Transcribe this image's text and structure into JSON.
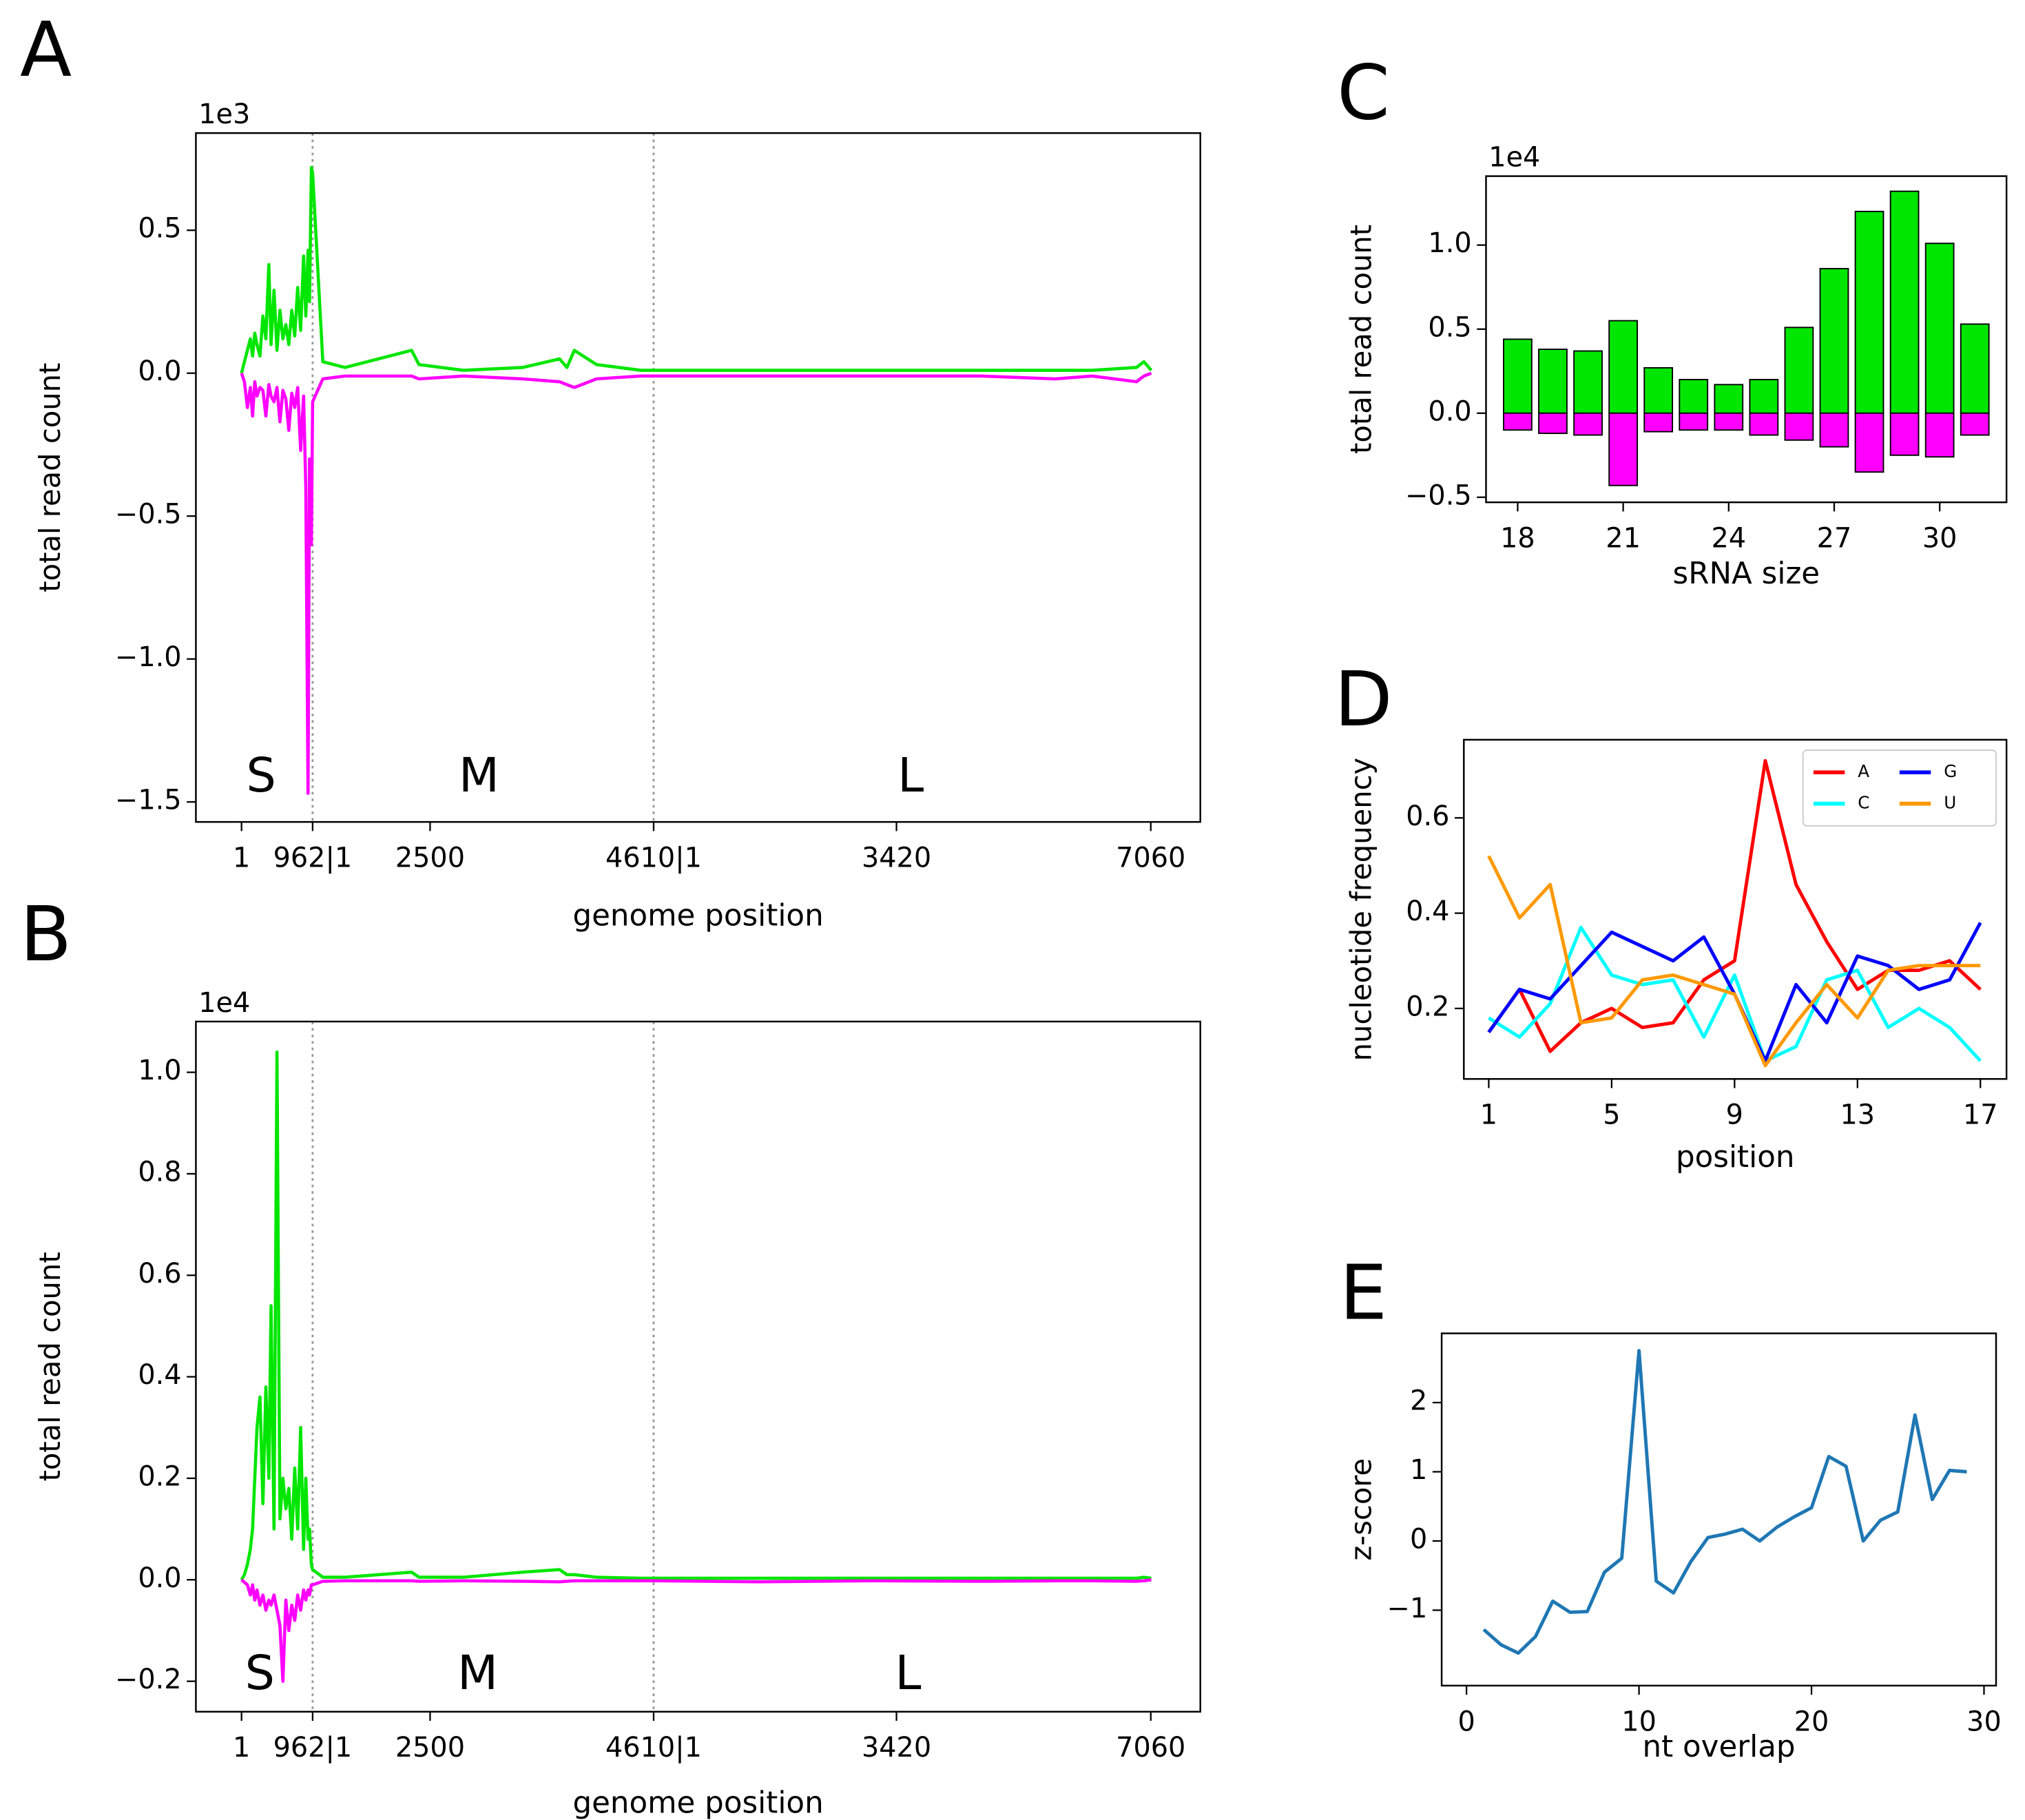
{
  "chart_data": [
    {
      "type": "line",
      "panel_label": "A",
      "offset_text": "1e3",
      "ylabel": "total read count",
      "xlabel": "genome position",
      "annotations": [
        "S",
        "M",
        "L"
      ],
      "vlines": [
        962,
        5572
      ],
      "xlim": [
        -616,
        12963
      ],
      "ylim": [
        -1.57,
        0.84
      ],
      "xticks": [
        {
          "value": 1,
          "label": "1"
        },
        {
          "value": 962,
          "label": "962|1"
        },
        {
          "value": 2550,
          "label": "2500"
        },
        {
          "value": 5572,
          "label": "4610|1"
        },
        {
          "value": 8855,
          "label": "3420"
        },
        {
          "value": 12293,
          "label": "7060"
        }
      ],
      "yticks": [
        0.5,
        {
          "value": 0,
          "label": "0.0"
        },
        {
          "value": -0.5,
          "label": "−0.5"
        },
        {
          "value": -1,
          "label": "−1.0"
        },
        {
          "value": -1.5,
          "label": "−1.5"
        }
      ],
      "x": [
        1,
        40,
        80,
        120,
        150,
        180,
        210,
        250,
        290,
        330,
        370,
        400,
        440,
        480,
        520,
        560,
        600,
        640,
        680,
        720,
        760,
        800,
        840,
        870,
        900,
        920,
        945,
        962,
        1100,
        1400,
        2300,
        2400,
        3000,
        3800,
        4300,
        4400,
        4500,
        4800,
        5400,
        5600,
        7000,
        8500,
        10000,
        11000,
        11500,
        12100,
        12200,
        12300
      ],
      "series": [
        {
          "color": "#00e600",
          "values": [
            0,
            0.04,
            0.08,
            0.12,
            0.06,
            0.14,
            0.1,
            0.06,
            0.2,
            0.12,
            0.38,
            0.1,
            0.29,
            0.08,
            0.22,
            0.12,
            0.17,
            0.1,
            0.22,
            0.13,
            0.3,
            0.15,
            0.41,
            0.2,
            0.43,
            0.25,
            0.72,
            0.7,
            0.04,
            0.02,
            0.08,
            0.03,
            0.01,
            0.02,
            0.05,
            0.02,
            0.08,
            0.03,
            0.01,
            0.01,
            0.01,
            0.01,
            0.01,
            0.01,
            0.01,
            0.02,
            0.04,
            0.01
          ]
        },
        {
          "color": "#ff00ff",
          "values": [
            0,
            -0.03,
            -0.12,
            -0.05,
            -0.15,
            -0.03,
            -0.08,
            -0.05,
            -0.06,
            -0.15,
            -0.04,
            -0.08,
            -0.1,
            -0.05,
            -0.17,
            -0.06,
            -0.09,
            -0.2,
            -0.07,
            -0.12,
            -0.05,
            -0.27,
            -0.08,
            -0.4,
            -1.47,
            -0.3,
            -0.6,
            -0.1,
            -0.02,
            -0.01,
            -0.01,
            -0.02,
            -0.01,
            -0.02,
            -0.03,
            -0.04,
            -0.05,
            -0.02,
            -0.01,
            -0.01,
            -0.01,
            -0.01,
            -0.01,
            -0.02,
            -0.01,
            -0.03,
            -0.01,
            0
          ]
        }
      ]
    },
    {
      "type": "line",
      "panel_label": "B",
      "offset_text": "1e4",
      "ylabel": "total read count",
      "xlabel": "genome position",
      "annotations": [
        "S",
        "M",
        "L"
      ],
      "vlines": [
        962,
        5572
      ],
      "xlim": [
        -616,
        12963
      ],
      "ylim": [
        -0.26,
        1.1
      ],
      "xticks": [
        {
          "value": 1,
          "label": "1"
        },
        {
          "value": 962,
          "label": "962|1"
        },
        {
          "value": 2550,
          "label": "2500"
        },
        {
          "value": 5572,
          "label": "4610|1"
        },
        {
          "value": 8855,
          "label": "3420"
        },
        {
          "value": 12293,
          "label": "7060"
        }
      ],
      "yticks": [
        {
          "value": 1,
          "label": "1.0"
        },
        0.8,
        0.6,
        0.4,
        0.2,
        {
          "value": 0,
          "label": "0.0"
        },
        {
          "value": -0.2,
          "label": "−0.2"
        }
      ],
      "x": [
        1,
        40,
        80,
        120,
        150,
        180,
        210,
        250,
        290,
        330,
        370,
        400,
        440,
        480,
        520,
        560,
        600,
        640,
        680,
        720,
        760,
        800,
        840,
        870,
        900,
        920,
        945,
        962,
        1100,
        1400,
        2300,
        2400,
        3000,
        3800,
        4300,
        4400,
        4500,
        4800,
        5400,
        5600,
        7000,
        8500,
        10000,
        11000,
        11500,
        12100,
        12200,
        12300
      ],
      "series": [
        {
          "color": "#00e600",
          "values": [
            0,
            0.01,
            0.03,
            0.06,
            0.1,
            0.2,
            0.3,
            0.36,
            0.15,
            0.38,
            0.2,
            0.54,
            0.1,
            1.04,
            0.12,
            0.2,
            0.14,
            0.18,
            0.08,
            0.22,
            0.1,
            0.3,
            0.06,
            0.2,
            0.08,
            0.1,
            0.03,
            0.02,
            0.005,
            0.005,
            0.015,
            0.005,
            0.005,
            0.015,
            0.02,
            0.01,
            0.01,
            0.005,
            0.003,
            0.003,
            0.003,
            0.003,
            0.003,
            0.003,
            0.003,
            0.003,
            0.005,
            0.003
          ]
        },
        {
          "color": "#ff00ff",
          "values": [
            0,
            -0.005,
            -0.01,
            -0.03,
            -0.01,
            -0.04,
            -0.02,
            -0.05,
            -0.03,
            -0.06,
            -0.04,
            -0.05,
            -0.03,
            -0.06,
            -0.09,
            -0.2,
            -0.04,
            -0.1,
            -0.05,
            -0.08,
            -0.03,
            -0.06,
            -0.02,
            -0.04,
            -0.02,
            -0.03,
            -0.01,
            -0.01,
            -0.003,
            -0.002,
            -0.002,
            -0.003,
            -0.002,
            -0.003,
            -0.004,
            -0.003,
            -0.002,
            -0.002,
            -0.002,
            -0.002,
            -0.004,
            -0.002,
            -0.003,
            -0.002,
            -0.002,
            -0.003,
            -0.002,
            0
          ]
        }
      ]
    },
    {
      "type": "bar",
      "panel_label": "C",
      "offset_text": "1e4",
      "ylabel": "total read count",
      "xlabel": "sRNA size",
      "xlim": [
        17.1,
        31.9
      ],
      "ylim": [
        -0.53,
        1.41
      ],
      "xticks": [
        18,
        21,
        24,
        27,
        30
      ],
      "yticks": [
        {
          "value": -0.5,
          "label": "−0.5"
        },
        {
          "value": 0,
          "label": "0.0"
        },
        0.5,
        {
          "value": 1,
          "label": "1.0"
        }
      ],
      "x": [
        18,
        19,
        20,
        21,
        22,
        23,
        24,
        25,
        26,
        27,
        28,
        29,
        30,
        31
      ],
      "series": [
        {
          "color": "#00e600",
          "values": [
            0.44,
            0.38,
            0.37,
            0.55,
            0.27,
            0.2,
            0.17,
            0.2,
            0.51,
            0.86,
            1.2,
            1.32,
            1.01,
            0.53
          ]
        },
        {
          "color": "#ff00ff",
          "values": [
            -0.1,
            -0.12,
            -0.13,
            -0.43,
            -0.11,
            -0.1,
            -0.1,
            -0.13,
            -0.16,
            -0.2,
            -0.35,
            -0.25,
            -0.26,
            -0.13
          ]
        }
      ]
    },
    {
      "type": "line",
      "panel_label": "D",
      "ylabel": "nucleotide frequency",
      "xlabel": "position",
      "legend": "upper right",
      "xlim": [
        0.19,
        17.85
      ],
      "ylim": [
        0.052,
        0.764
      ],
      "xticks": [
        1,
        5,
        9,
        13,
        17
      ],
      "yticks": [
        0.2,
        0.4,
        0.6
      ],
      "x": [
        1,
        2,
        3,
        4,
        5,
        6,
        7,
        8,
        9,
        10,
        11,
        12,
        13,
        14,
        15,
        16,
        17
      ],
      "series": [
        {
          "name": "A",
          "color": "#ff0000",
          "values": [
            0.15,
            0.24,
            0.11,
            0.17,
            0.2,
            0.16,
            0.17,
            0.26,
            0.3,
            0.72,
            0.46,
            0.34,
            0.24,
            0.28,
            0.28,
            0.3,
            0.24
          ]
        },
        {
          "name": "C",
          "color": "#00ffff",
          "values": [
            0.18,
            0.14,
            0.21,
            0.37,
            0.27,
            0.25,
            0.26,
            0.14,
            0.27,
            0.09,
            0.12,
            0.26,
            0.28,
            0.16,
            0.2,
            0.16,
            0.09
          ]
        },
        {
          "name": "G",
          "color": "#0000ff",
          "values": [
            0.15,
            0.24,
            0.22,
            0.29,
            0.36,
            0.33,
            0.3,
            0.35,
            0.23,
            0.09,
            0.25,
            0.17,
            0.31,
            0.29,
            0.24,
            0.26,
            0.38
          ]
        },
        {
          "name": "U",
          "color": "#ff9900",
          "values": [
            0.52,
            0.39,
            0.46,
            0.17,
            0.18,
            0.26,
            0.27,
            0.25,
            0.23,
            0.08,
            0.17,
            0.25,
            0.18,
            0.28,
            0.29,
            0.29,
            0.29
          ]
        }
      ]
    },
    {
      "type": "line",
      "panel_label": "E",
      "ylabel": "z-score",
      "xlabel": "nt overlap",
      "xlim": [
        -1.44,
        30.7
      ],
      "ylim": [
        -2.09,
        3.0
      ],
      "xticks": [
        0,
        10,
        20,
        30
      ],
      "yticks": [
        {
          "value": -1,
          "label": "−1"
        },
        0,
        1,
        2
      ],
      "x": [
        1,
        2,
        3,
        4,
        5,
        6,
        7,
        8,
        9,
        10,
        11,
        12,
        13,
        14,
        15,
        16,
        17,
        18,
        19,
        20,
        21,
        22,
        23,
        24,
        25,
        26,
        27,
        28,
        29
      ],
      "series": [
        {
          "color": "#1f77b4",
          "values": [
            -1.28,
            -1.5,
            -1.62,
            -1.38,
            -0.87,
            -1.03,
            -1.02,
            -0.45,
            -0.25,
            2.75,
            -0.58,
            -0.75,
            -0.3,
            0.05,
            0.1,
            0.17,
            0,
            0.2,
            0.35,
            0.48,
            1.22,
            1.08,
            0,
            0.3,
            0.42,
            1.82,
            0.6,
            1.02,
            1.0
          ]
        }
      ]
    }
  ]
}
